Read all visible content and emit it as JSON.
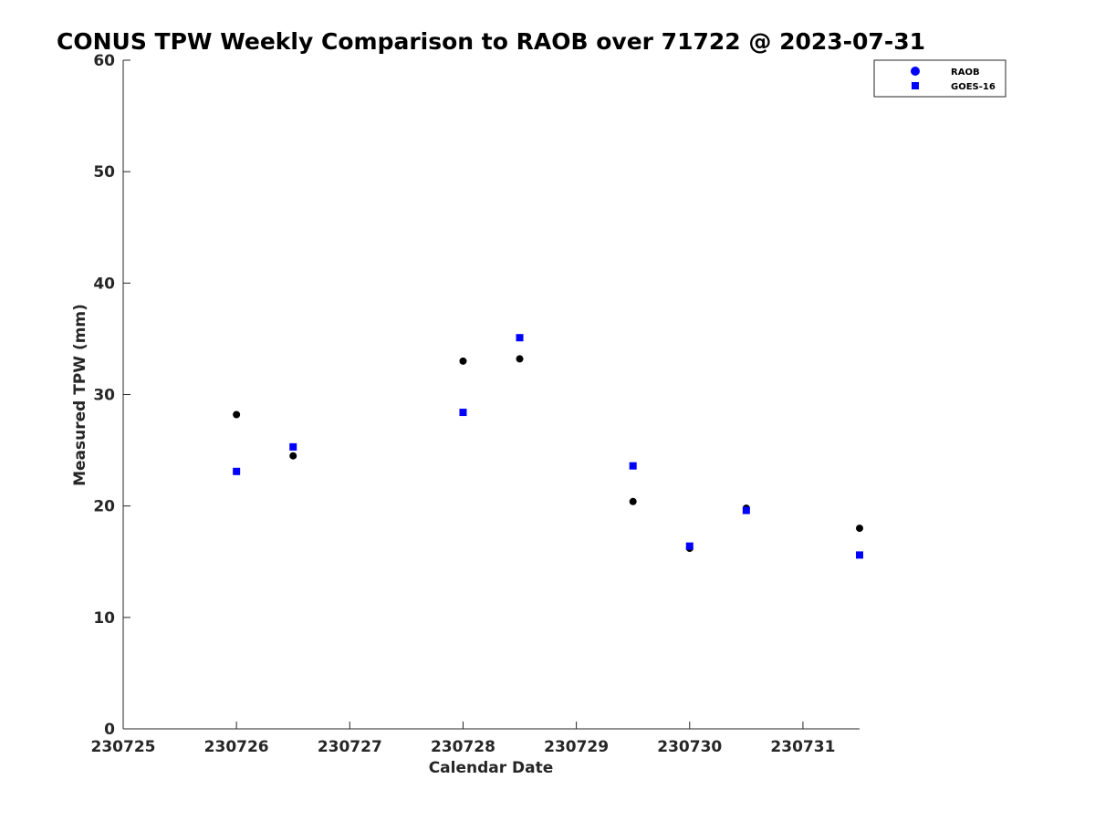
{
  "chart_data": {
    "type": "scatter",
    "title": "CONUS TPW Weekly Comparison to RAOB over 71722 @ 2023-07-31",
    "xlabel": "Calendar Date",
    "ylabel": "Measured TPW (mm)",
    "xlim": [
      "2023-07-25",
      "2023-07-31 12:00"
    ],
    "ylim": [
      0,
      60
    ],
    "x_ticks": [
      {
        "x": "2023-07-25",
        "label": "230725"
      },
      {
        "x": "2023-07-26",
        "label": "230726"
      },
      {
        "x": "2023-07-27",
        "label": "230727"
      },
      {
        "x": "2023-07-28",
        "label": "230728"
      },
      {
        "x": "2023-07-29",
        "label": "230729"
      },
      {
        "x": "2023-07-30",
        "label": "230730"
      },
      {
        "x": "2023-07-31",
        "label": "230731"
      }
    ],
    "y_ticks": [
      {
        "y": 0,
        "label": "0"
      },
      {
        "y": 10,
        "label": "10"
      },
      {
        "y": 20,
        "label": "20"
      },
      {
        "y": 30,
        "label": "30"
      },
      {
        "y": 40,
        "label": "40"
      },
      {
        "y": 50,
        "label": "50"
      },
      {
        "y": 60,
        "label": "60"
      }
    ],
    "grid": false,
    "legend_position": "top-right",
    "series": [
      {
        "name": "RAOB",
        "marker": "circle",
        "color": "#000000",
        "legend_color": "#0000ff",
        "points": [
          {
            "x": "2023-07-26 00:00",
            "y": 28.2
          },
          {
            "x": "2023-07-26 12:00",
            "y": 24.5
          },
          {
            "x": "2023-07-28 00:00",
            "y": 33.0
          },
          {
            "x": "2023-07-28 12:00",
            "y": 33.2
          },
          {
            "x": "2023-07-29 12:00",
            "y": 20.4
          },
          {
            "x": "2023-07-30 00:00",
            "y": 16.2
          },
          {
            "x": "2023-07-30 12:00",
            "y": 19.8
          },
          {
            "x": "2023-07-31 12:00",
            "y": 18.0
          }
        ]
      },
      {
        "name": "GOES-16",
        "marker": "square",
        "color": "#0000ff",
        "legend_color": "#0000ff",
        "points": [
          {
            "x": "2023-07-26 00:00",
            "y": 23.1
          },
          {
            "x": "2023-07-26 12:00",
            "y": 25.3
          },
          {
            "x": "2023-07-28 00:00",
            "y": 28.4
          },
          {
            "x": "2023-07-28 12:00",
            "y": 35.1
          },
          {
            "x": "2023-07-29 12:00",
            "y": 23.6
          },
          {
            "x": "2023-07-30 00:00",
            "y": 16.4
          },
          {
            "x": "2023-07-30 12:00",
            "y": 19.6
          },
          {
            "x": "2023-07-31 12:00",
            "y": 15.6
          }
        ]
      }
    ]
  }
}
